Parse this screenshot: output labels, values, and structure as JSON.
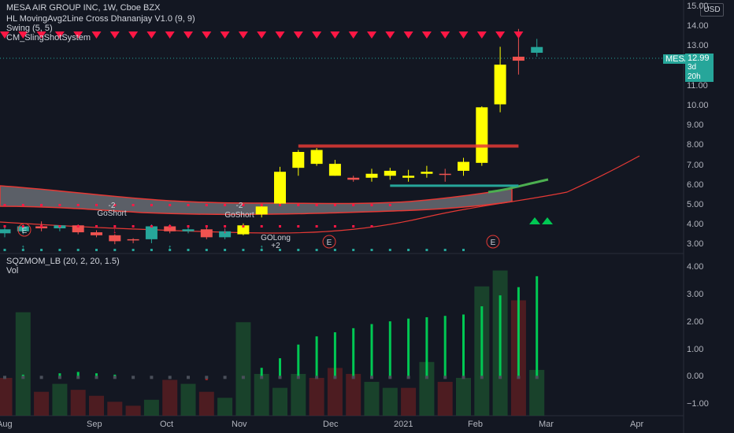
{
  "header": {
    "symbol_line": "MESA AIR GROUP INC, 1W, Cboe BZX",
    "currency": "USD"
  },
  "indicators": {
    "hl_ma": "HL MovingAvg2Line Cross Dhananjay V1.0 (9, 9)",
    "swing": "Swing (5, 5)",
    "slingshot": "CM_SlingShotSystem",
    "sqzmom": "SQZMOM_LB (20, 2, 20, 1.5)",
    "vol": "Vol"
  },
  "price_axis": {
    "ticks": [
      "15.00",
      "14.00",
      "13.00",
      "12.00",
      "11.00",
      "10.00",
      "9.00",
      "8.00",
      "7.00",
      "6.00",
      "5.00",
      "4.00",
      "3.00"
    ],
    "last_symbol": "MESA",
    "last_price": "12.99",
    "countdown": "3d 20h"
  },
  "osc_axis": {
    "ticks": [
      "4.00",
      "3.00",
      "2.00",
      "1.00",
      "0.00",
      "−1.00"
    ]
  },
  "time_axis": {
    "labels": [
      "Aug",
      "Sep",
      "Oct",
      "Nov",
      "Dec",
      "2021",
      "Feb",
      "Mar",
      "Apr"
    ]
  },
  "annotations": {
    "goshort_1": "GoShort",
    "goshort_1_value": "-2",
    "goshort_2": "GoShort",
    "goshort_2_value": "-2",
    "golong": "GOLong",
    "golong_value": "+2",
    "earnings": "E"
  },
  "colors": {
    "up": "#26a69a",
    "down": "#ef5350",
    "yellow": "#ffff00",
    "green_arrow": "#00c853",
    "red_marker": "#ff1744",
    "background": "#131722"
  },
  "chart_data": {
    "type": "candlestick",
    "timeframe": "1W",
    "candles": [
      {
        "o": 3.8,
        "h": 3.9,
        "l": 3.4,
        "c": 3.6,
        "color": "teal"
      },
      {
        "o": 3.7,
        "h": 4.05,
        "l": 3.55,
        "c": 3.95,
        "color": "teal"
      },
      {
        "o": 3.95,
        "h": 4.2,
        "l": 3.7,
        "c": 3.85,
        "color": "red"
      },
      {
        "o": 3.85,
        "h": 4.0,
        "l": 3.7,
        "c": 4.0,
        "color": "teal"
      },
      {
        "o": 4.0,
        "h": 4.05,
        "l": 3.55,
        "c": 3.65,
        "color": "red"
      },
      {
        "o": 3.65,
        "h": 3.75,
        "l": 3.4,
        "c": 3.5,
        "color": "red"
      },
      {
        "o": 3.5,
        "h": 3.55,
        "l": 3.05,
        "c": 3.2,
        "color": "red"
      },
      {
        "o": 3.25,
        "h": 3.35,
        "l": 3.1,
        "c": 3.3,
        "color": "red"
      },
      {
        "o": 3.3,
        "h": 4.05,
        "l": 3.1,
        "c": 3.95,
        "color": "teal"
      },
      {
        "o": 3.95,
        "h": 4.05,
        "l": 3.6,
        "c": 3.7,
        "color": "red"
      },
      {
        "o": 3.7,
        "h": 3.95,
        "l": 3.6,
        "c": 3.8,
        "color": "teal"
      },
      {
        "o": 3.8,
        "h": 3.9,
        "l": 3.3,
        "c": 3.4,
        "color": "red"
      },
      {
        "o": 3.4,
        "h": 3.85,
        "l": 3.3,
        "c": 3.7,
        "color": "teal"
      },
      {
        "o": 3.55,
        "h": 4.1,
        "l": 3.5,
        "c": 4.0,
        "color": "yellow"
      },
      {
        "o": 4.55,
        "h": 5.0,
        "l": 4.4,
        "c": 4.95,
        "color": "yellow"
      },
      {
        "o": 5.1,
        "h": 6.95,
        "l": 5.0,
        "c": 6.7,
        "color": "yellow"
      },
      {
        "o": 6.9,
        "h": 7.8,
        "l": 6.5,
        "c": 7.7,
        "color": "yellow"
      },
      {
        "o": 7.8,
        "h": 7.9,
        "l": 7.0,
        "c": 7.1,
        "color": "yellow"
      },
      {
        "o": 7.1,
        "h": 7.3,
        "l": 6.5,
        "c": 6.5,
        "color": "yellow"
      },
      {
        "o": 6.4,
        "h": 6.5,
        "l": 6.2,
        "c": 6.3,
        "color": "red"
      },
      {
        "o": 6.4,
        "h": 6.85,
        "l": 6.2,
        "c": 6.6,
        "color": "yellow"
      },
      {
        "o": 6.5,
        "h": 6.9,
        "l": 6.3,
        "c": 6.75,
        "color": "yellow"
      },
      {
        "o": 6.5,
        "h": 6.8,
        "l": 6.2,
        "c": 6.4,
        "color": "yellow"
      },
      {
        "o": 6.6,
        "h": 7.0,
        "l": 6.4,
        "c": 6.7,
        "color": "yellow"
      },
      {
        "o": 6.6,
        "h": 6.85,
        "l": 6.2,
        "c": 6.6,
        "color": "red"
      },
      {
        "o": 6.75,
        "h": 7.4,
        "l": 6.5,
        "c": 7.2,
        "color": "yellow"
      },
      {
        "o": 7.15,
        "h": 10.0,
        "l": 7.0,
        "c": 9.95,
        "color": "yellow"
      },
      {
        "o": 10.1,
        "h": 13.0,
        "l": 9.7,
        "c": 12.1,
        "color": "yellow"
      },
      {
        "o": 12.5,
        "h": 13.9,
        "l": 11.6,
        "c": 12.3,
        "color": "red"
      },
      {
        "o": 12.7,
        "h": 13.4,
        "l": 12.5,
        "c": 12.99,
        "color": "teal"
      }
    ],
    "volume": [
      0.95,
      2.6,
      0.6,
      0.8,
      0.65,
      0.5,
      0.35,
      0.25,
      0.4,
      0.9,
      0.8,
      0.6,
      0.45,
      2.35,
      1.05,
      0.7,
      1.05,
      0.95,
      1.2,
      1.05,
      0.85,
      0.7,
      0.7,
      1.35,
      0.85,
      0.95,
      3.25,
      3.65,
      2.9,
      1.15
    ],
    "volume_colors": [
      "red",
      "teal",
      "red",
      "teal",
      "red",
      "red",
      "red",
      "red",
      "teal",
      "red",
      "teal",
      "red",
      "teal",
      "teal",
      "teal",
      "teal",
      "teal",
      "red",
      "red",
      "red",
      "teal",
      "teal",
      "red",
      "teal",
      "red",
      "teal",
      "teal",
      "teal",
      "red",
      "teal"
    ],
    "squeeze_momentum": [
      0.05,
      0.1,
      0.05,
      0.15,
      0.2,
      0.15,
      0.1,
      0.0,
      -0.05,
      0.05,
      0.0,
      -0.1,
      0.0,
      0.05,
      0.35,
      0.7,
      1.2,
      1.5,
      1.65,
      1.8,
      1.95,
      2.05,
      2.15,
      2.2,
      2.25,
      2.3,
      2.6,
      3.0,
      3.3,
      3.7
    ],
    "resistance": {
      "level": 8.0,
      "from_bar": 16,
      "to_bar": 28
    },
    "support": {
      "level": 6.0,
      "from_bar": 21,
      "to_bar": 28
    },
    "ylim": [
      2.7,
      15.2
    ],
    "osc_ylim": [
      -1.4,
      4.3
    ]
  }
}
